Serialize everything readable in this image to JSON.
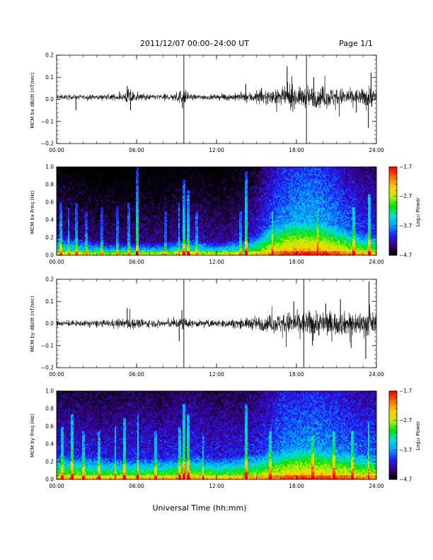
{
  "header": {
    "title": "2011/12/07  00:00–24:00 UT",
    "page": "Page 1/1"
  },
  "xlabel": "Universal Time (hh:mm)",
  "colors": {
    "background": "#ffffff",
    "trace": "#000000",
    "colormap": [
      "#000000",
      "#3a0088",
      "#2020ff",
      "#00a0ff",
      "#00e0e0",
      "#00e000",
      "#c0f000",
      "#ffd000",
      "#ff7000",
      "#ff0000"
    ]
  },
  "chart_data": [
    {
      "type": "line",
      "ylabel": "MCM bx dB/dt (nT/sec)",
      "xlim": [
        0,
        24
      ],
      "ylim": [
        -0.2,
        0.2
      ],
      "xticks": [
        "00:00",
        "06:00",
        "12:00",
        "18:00",
        "24:00"
      ],
      "yticks": [
        "−0.2",
        "−0.1",
        "0.0",
        "0.1",
        "0.2"
      ],
      "baseline": 0.01,
      "markers": [
        9.55,
        18.75
      ],
      "series": [
        {
          "x": [
            0,
            1,
            2,
            3,
            4,
            5,
            5.5,
            6,
            7,
            8,
            9,
            9.5,
            10,
            11,
            12,
            13,
            14,
            15,
            16,
            17,
            17.5,
            18,
            19,
            20,
            21,
            22,
            23,
            23.5,
            24
          ],
          "amp": [
            0.01,
            0.01,
            0.01,
            0.01,
            0.012,
            0.015,
            0.04,
            0.015,
            0.012,
            0.012,
            0.02,
            0.04,
            0.012,
            0.012,
            0.012,
            0.015,
            0.018,
            0.025,
            0.03,
            0.035,
            0.06,
            0.04,
            0.045,
            0.045,
            0.04,
            0.035,
            0.035,
            0.05,
            0.03
          ]
        }
      ],
      "spikes": [
        [
          1.45,
          -0.05
        ],
        [
          5.3,
          0.06
        ],
        [
          5.55,
          -0.05
        ],
        [
          9.45,
          -0.04
        ],
        [
          14.2,
          0.07
        ],
        [
          17.3,
          0.15
        ],
        [
          19.3,
          0.1
        ],
        [
          22.5,
          -0.06
        ],
        [
          23.4,
          -0.13
        ],
        [
          23.6,
          0.12
        ]
      ]
    },
    {
      "type": "heatmap",
      "ylabel": "MCM bx Freq (Hz)",
      "xlim": [
        0,
        24
      ],
      "ylim": [
        0,
        1.0
      ],
      "xticks": [
        "00:00",
        "06:00",
        "12:00",
        "18:00",
        "24:00"
      ],
      "yticks": [
        "0.0",
        "0.2",
        "0.4",
        "0.6",
        "0.8",
        "1.0"
      ],
      "colorbar": {
        "label": "Log₁₀ Power",
        "range": [
          -4.7,
          -1.7
        ],
        "ticks": [
          "−1.7",
          "−2.7",
          "−3.7",
          "−4.7"
        ]
      },
      "profile": {
        "x": [
          0,
          2,
          4,
          6,
          8,
          10,
          12,
          14,
          15,
          16,
          17,
          18,
          19,
          20,
          21,
          22,
          23,
          24
        ],
        "level": [
          0.4,
          0.36,
          0.35,
          0.36,
          0.36,
          0.4,
          0.37,
          0.4,
          0.45,
          0.55,
          0.62,
          0.65,
          0.66,
          0.64,
          0.6,
          0.55,
          0.5,
          0.5
        ],
        "extent": [
          0.25,
          0.2,
          0.15,
          0.15,
          0.15,
          0.2,
          0.15,
          0.2,
          0.25,
          0.35,
          0.38,
          0.4,
          0.4,
          0.38,
          0.35,
          0.3,
          0.25,
          0.25
        ]
      },
      "streaks": [
        [
          0.3,
          0.6
        ],
        [
          0.9,
          0.55
        ],
        [
          1.5,
          0.6
        ],
        [
          2.2,
          0.5
        ],
        [
          3.4,
          0.55
        ],
        [
          4.6,
          0.55
        ],
        [
          5.4,
          0.6
        ],
        [
          6.05,
          1.0
        ],
        [
          8.2,
          0.5
        ],
        [
          9.2,
          0.6
        ],
        [
          9.55,
          0.85
        ],
        [
          9.85,
          0.75
        ],
        [
          10.5,
          0.5
        ],
        [
          13.8,
          0.5
        ],
        [
          14.25,
          0.95
        ],
        [
          16.2,
          0.5
        ],
        [
          19.6,
          0.5
        ],
        [
          22.3,
          0.55
        ],
        [
          23.5,
          0.7
        ]
      ]
    },
    {
      "type": "line",
      "ylabel": "MCM by dB/dt (nT/sec)",
      "xlim": [
        0,
        24
      ],
      "ylim": [
        -0.2,
        0.2
      ],
      "xticks": [
        "00:00",
        "06:00",
        "12:00",
        "18:00",
        "24:00"
      ],
      "yticks": [
        "−0.2",
        "−0.1",
        "0.0",
        "0.1",
        "0.2"
      ],
      "baseline": 0.0,
      "markers": [
        9.55,
        18.55
      ],
      "series": [
        {
          "x": [
            0,
            1,
            2,
            3,
            4,
            5,
            5.5,
            6,
            7,
            8,
            9,
            9.5,
            10,
            11,
            12,
            13,
            14,
            15,
            16,
            17,
            17.5,
            18,
            19,
            20,
            21,
            22,
            23,
            23.5,
            24
          ],
          "amp": [
            0.012,
            0.012,
            0.012,
            0.014,
            0.016,
            0.018,
            0.03,
            0.02,
            0.016,
            0.016,
            0.02,
            0.03,
            0.016,
            0.015,
            0.015,
            0.018,
            0.02,
            0.03,
            0.035,
            0.045,
            0.05,
            0.05,
            0.055,
            0.055,
            0.05,
            0.05,
            0.05,
            0.06,
            0.035
          ]
        }
      ],
      "spikes": [
        [
          5.3,
          0.07
        ],
        [
          9.2,
          -0.08
        ],
        [
          9.4,
          0.06
        ],
        [
          17.8,
          0.1
        ],
        [
          19.2,
          -0.1
        ],
        [
          20.2,
          0.09
        ],
        [
          21.3,
          0.11
        ],
        [
          22.1,
          -0.11
        ],
        [
          23.2,
          -0.16
        ],
        [
          23.45,
          0.19
        ]
      ]
    },
    {
      "type": "heatmap",
      "ylabel": "MCM by Freq (Hz)",
      "xlim": [
        0,
        24
      ],
      "ylim": [
        0,
        1.0
      ],
      "xticks": [
        "00:00",
        "06:00",
        "12:00",
        "18:00",
        "24:00"
      ],
      "yticks": [
        "0.0",
        "0.2",
        "0.4",
        "0.6",
        "0.8",
        "1.0"
      ],
      "colorbar": {
        "label": "Log₁₀ Power",
        "range": [
          -4.7,
          -1.7
        ],
        "ticks": [
          "−1.7",
          "−2.7",
          "−3.7",
          "−4.7"
        ]
      },
      "profile": {
        "x": [
          0,
          2,
          4,
          6,
          8,
          10,
          12,
          14,
          15,
          16,
          17,
          18,
          19,
          20,
          21,
          22,
          23,
          24
        ],
        "level": [
          0.48,
          0.47,
          0.46,
          0.48,
          0.47,
          0.5,
          0.47,
          0.48,
          0.5,
          0.55,
          0.6,
          0.62,
          0.63,
          0.62,
          0.6,
          0.57,
          0.55,
          0.55
        ],
        "extent": [
          0.3,
          0.28,
          0.25,
          0.25,
          0.25,
          0.28,
          0.25,
          0.28,
          0.3,
          0.33,
          0.35,
          0.37,
          0.37,
          0.36,
          0.34,
          0.32,
          0.3,
          0.3
        ]
      },
      "streaks": [
        [
          0.4,
          0.6
        ],
        [
          1.2,
          0.75
        ],
        [
          2.0,
          0.55
        ],
        [
          3.2,
          0.55
        ],
        [
          4.4,
          0.6
        ],
        [
          5.1,
          0.7
        ],
        [
          6.1,
          0.75
        ],
        [
          7.4,
          0.55
        ],
        [
          9.25,
          0.6
        ],
        [
          9.55,
          0.85
        ],
        [
          9.9,
          0.75
        ],
        [
          11.0,
          0.5
        ],
        [
          14.25,
          0.85
        ],
        [
          16.0,
          0.55
        ],
        [
          19.2,
          0.5
        ],
        [
          20.8,
          0.55
        ],
        [
          22.2,
          0.55
        ],
        [
          23.4,
          0.65
        ]
      ]
    }
  ]
}
